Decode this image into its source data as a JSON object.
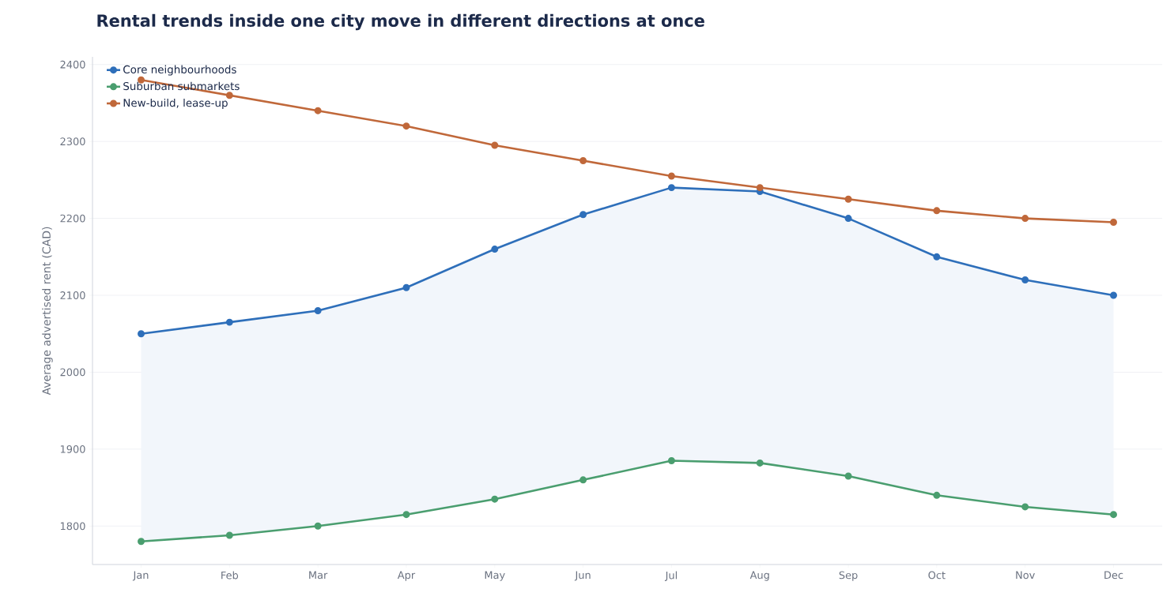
{
  "chart_data": {
    "type": "line",
    "title": "Rental trends inside one city move in different directions at once",
    "ylabel": "Average advertised rent (CAD)",
    "categories": [
      "Jan",
      "Feb",
      "Mar",
      "Apr",
      "May",
      "Jun",
      "Jul",
      "Aug",
      "Sep",
      "Oct",
      "Nov",
      "Dec"
    ],
    "series": [
      {
        "name": "Core neighbourhoods",
        "color": "#2e6fba",
        "values": [
          2050,
          2065,
          2080,
          2110,
          2160,
          2205,
          2240,
          2235,
          2200,
          2150,
          2120,
          2100
        ],
        "lower": [
          1780,
          1788,
          1800,
          1815,
          1835,
          1860,
          1885,
          1882,
          1865,
          1840,
          1825,
          1815
        ],
        "upper": [
          2050,
          2065,
          2080,
          2110,
          2160,
          2205,
          2240,
          2235,
          2200,
          2150,
          2120,
          2100
        ]
      },
      {
        "name": "Suburban submarkets",
        "color": "#4a9e6f",
        "values": [
          1780,
          1788,
          1800,
          1815,
          1835,
          1860,
          1885,
          1882,
          1865,
          1840,
          1825,
          1815
        ]
      },
      {
        "name": "New-build, lease-up",
        "color": "#c0683a",
        "values": [
          2380,
          2360,
          2340,
          2320,
          2295,
          2275,
          2255,
          2240,
          2225,
          2210,
          2200,
          2195
        ]
      }
    ],
    "ylim": [
      1750,
      2410
    ],
    "yticks": [
      1800,
      1900,
      2000,
      2100,
      2200,
      2300,
      2400
    ],
    "grid": "y",
    "legend": "top left",
    "marker": "circle",
    "line_style": "solid"
  }
}
